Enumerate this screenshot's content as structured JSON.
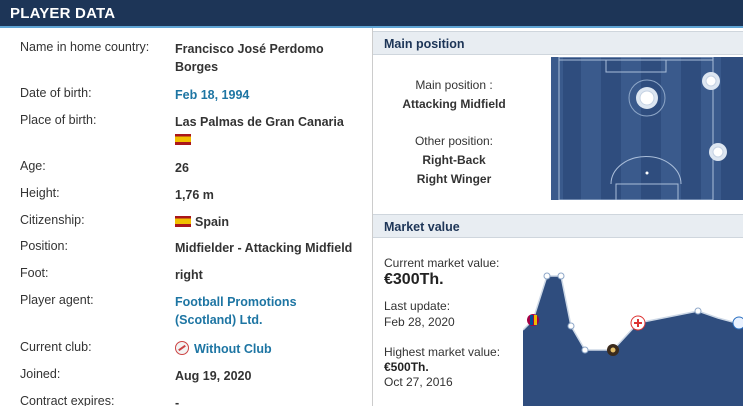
{
  "header": {
    "title": "PLAYER DATA"
  },
  "player": {
    "rows": [
      {
        "label": "Name in home country:",
        "value": "Francisco José Perdomo Borges"
      },
      {
        "label": "Date of birth:",
        "value": "Feb 18, 1994"
      },
      {
        "label": "Place of birth:",
        "value": "Las Palmas de Gran Canaria"
      },
      {
        "label": "Age:",
        "value": "26"
      },
      {
        "label": "Height:",
        "value": "1,76 m"
      },
      {
        "label": "Citizenship:",
        "value": "Spain"
      },
      {
        "label": "Position:",
        "value": "Midfielder - Attacking Midfield"
      },
      {
        "label": "Foot:",
        "value": "right"
      },
      {
        "label": "Player agent:",
        "value": "Football Promotions (Scotland) Ltd."
      },
      {
        "label": "Current club:",
        "value": "Without Club"
      },
      {
        "label": "Joined:",
        "value": "Aug 19, 2020"
      },
      {
        "label": "Contract expires:",
        "value": "-"
      }
    ]
  },
  "position": {
    "heading": "Main position",
    "main_label": "Main position :",
    "main_value": "Attacking Midfield",
    "other_label": "Other position:",
    "other_values": [
      "Right-Back",
      "Right Winger"
    ]
  },
  "market": {
    "heading": "Market value",
    "current_label": "Current market value:",
    "current_value": "€300Th.",
    "last_update_label": "Last update:",
    "last_update_value": "Feb 28, 2020",
    "highest_label": "Highest market value:",
    "highest_value": "€500Th.",
    "highest_date": "Oct 27, 2016"
  },
  "colors": {
    "header": "#1d3557",
    "accent": "#5fa4d4",
    "link": "#1d75a3",
    "pitch": "#2f4d7e",
    "chart_fill": "#2f4d7e"
  },
  "icons": {
    "citizenship_flag": "spain-flag-icon",
    "birthplace_flag": "spain-flag-icon",
    "club": "no-club-icon"
  }
}
